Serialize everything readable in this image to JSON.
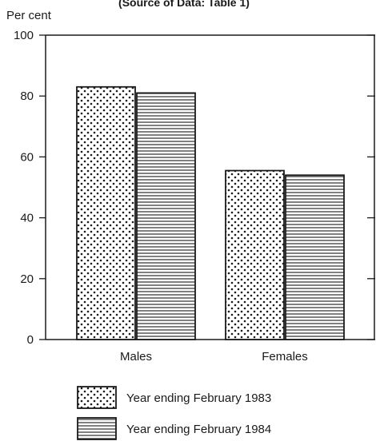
{
  "chart_data": {
    "type": "bar",
    "source_note": "(Source of Data: Table 1)",
    "ylabel": "Per cent",
    "xlabel": "",
    "ylim": [
      0,
      100
    ],
    "yticks": [
      0,
      20,
      40,
      60,
      80,
      100
    ],
    "categories": [
      "Males",
      "Females"
    ],
    "series": [
      {
        "name": "Year ending February 1983",
        "pattern": "dots",
        "values": [
          83,
          55.5
        ]
      },
      {
        "name": "Year ending February 1984",
        "pattern": "horizontal-lines",
        "values": [
          81,
          54
        ]
      }
    ],
    "grid": false,
    "legend_position": "bottom"
  },
  "colors": {
    "ink": "#1a1a1a",
    "background": "#ffffff"
  }
}
